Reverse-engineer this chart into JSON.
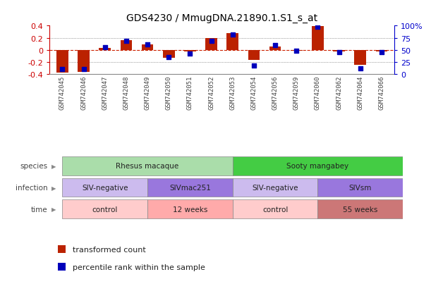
{
  "title": "GDS4230 / MmugDNA.21890.1.S1_s_at",
  "samples": [
    "GSM742045",
    "GSM742046",
    "GSM742047",
    "GSM742048",
    "GSM742049",
    "GSM742050",
    "GSM742051",
    "GSM742052",
    "GSM742053",
    "GSM742054",
    "GSM742056",
    "GSM742059",
    "GSM742060",
    "GSM742062",
    "GSM742064",
    "GSM742066"
  ],
  "bar_values": [
    -0.37,
    -0.36,
    0.03,
    0.16,
    0.09,
    -0.13,
    -0.02,
    0.19,
    0.27,
    -0.16,
    0.06,
    -0.01,
    0.39,
    -0.02,
    -0.25,
    -0.03
  ],
  "dot_values": [
    10,
    10,
    55,
    68,
    62,
    35,
    42,
    68,
    82,
    18,
    60,
    48,
    98,
    45,
    12,
    45
  ],
  "ylim_left": [
    -0.4,
    0.4
  ],
  "ylim_right": [
    0,
    100
  ],
  "yticks_left": [
    -0.4,
    -0.2,
    0.0,
    0.2,
    0.4
  ],
  "ytick_labels_left": [
    "-0.4",
    "-0.2",
    "0",
    "0.2",
    "0.4"
  ],
  "yticks_right": [
    0,
    25,
    50,
    75,
    100
  ],
  "ytick_labels_right": [
    "0",
    "25",
    "50",
    "75",
    "100%"
  ],
  "bar_color": "#bb2200",
  "dot_color": "#0000bb",
  "zero_line_color": "#cc2200",
  "grid_color": "#555555",
  "species_labels": [
    {
      "text": "Rhesus macaque",
      "start": 0,
      "end": 8,
      "color": "#aaddaa"
    },
    {
      "text": "Sooty mangabey",
      "start": 8,
      "end": 16,
      "color": "#44cc44"
    }
  ],
  "infection_labels": [
    {
      "text": "SIV-negative",
      "start": 0,
      "end": 4,
      "color": "#ccbbee"
    },
    {
      "text": "SIVmac251",
      "start": 4,
      "end": 8,
      "color": "#9977dd"
    },
    {
      "text": "SIV-negative",
      "start": 8,
      "end": 12,
      "color": "#ccbbee"
    },
    {
      "text": "SIVsm",
      "start": 12,
      "end": 16,
      "color": "#9977dd"
    }
  ],
  "time_labels": [
    {
      "text": "control",
      "start": 0,
      "end": 4,
      "color": "#ffcccc"
    },
    {
      "text": "12 weeks",
      "start": 4,
      "end": 8,
      "color": "#ffaaaa"
    },
    {
      "text": "control",
      "start": 8,
      "end": 12,
      "color": "#ffcccc"
    },
    {
      "text": "55 weeks",
      "start": 12,
      "end": 16,
      "color": "#cc7777"
    }
  ],
  "row_labels": [
    "species",
    "infection",
    "time"
  ],
  "legend_items": [
    {
      "color": "#bb2200",
      "label": "transformed count"
    },
    {
      "color": "#0000bb",
      "label": "percentile rank within the sample"
    }
  ],
  "bg_color": "#ffffff",
  "tick_label_color_left": "#cc0000",
  "tick_label_color_right": "#0000cc"
}
